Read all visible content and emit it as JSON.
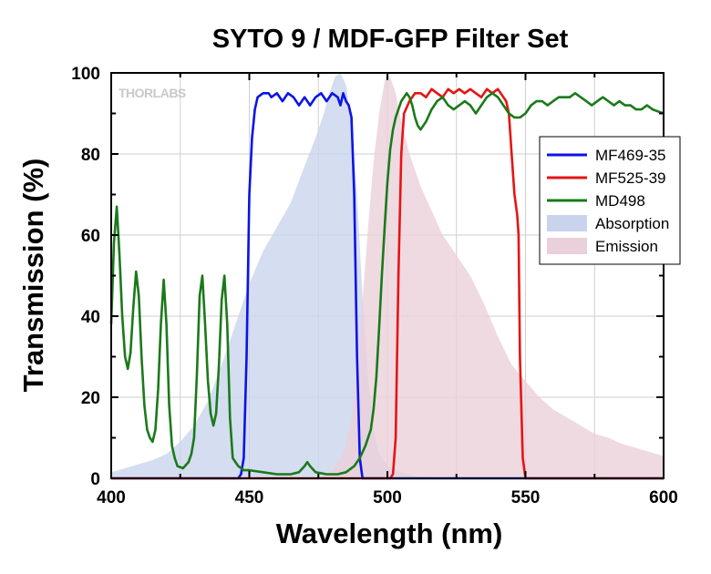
{
  "watermark": "THORLABS",
  "chart_data": {
    "type": "line",
    "title": "SYTO 9 / MDF-GFP Filter Set",
    "xlabel": "Wavelength (nm)",
    "ylabel": "Transmission (%)",
    "xlim": [
      400,
      600
    ],
    "ylim": [
      0,
      100
    ],
    "xticks": [
      400,
      450,
      500,
      550,
      600
    ],
    "yticks": [
      0,
      20,
      40,
      60,
      80,
      100
    ],
    "grid": true,
    "legend_position": "right",
    "series": [
      {
        "name": "MF469-35",
        "kind": "line",
        "color": "#0a14e6",
        "points": [
          [
            400,
            0
          ],
          [
            446,
            0
          ],
          [
            447,
            1
          ],
          [
            448,
            5
          ],
          [
            449,
            30
          ],
          [
            450,
            70
          ],
          [
            451,
            84
          ],
          [
            452,
            91
          ],
          [
            453,
            94
          ],
          [
            455,
            95
          ],
          [
            457,
            95
          ],
          [
            458,
            94
          ],
          [
            460,
            95
          ],
          [
            462,
            93
          ],
          [
            464,
            95
          ],
          [
            466,
            94
          ],
          [
            468,
            92
          ],
          [
            470,
            94
          ],
          [
            472,
            92
          ],
          [
            474,
            94
          ],
          [
            476,
            95
          ],
          [
            478,
            93
          ],
          [
            480,
            95
          ],
          [
            482,
            94
          ],
          [
            483,
            92
          ],
          [
            484,
            95
          ],
          [
            485,
            93
          ],
          [
            486,
            92
          ],
          [
            487,
            89
          ],
          [
            488,
            70
          ],
          [
            489,
            30
          ],
          [
            490,
            5
          ],
          [
            491,
            0
          ],
          [
            600,
            0
          ]
        ]
      },
      {
        "name": "MF525-39",
        "kind": "line",
        "color": "#e61414",
        "points": [
          [
            400,
            0
          ],
          [
            501,
            0
          ],
          [
            502,
            1
          ],
          [
            503,
            10
          ],
          [
            504,
            50
          ],
          [
            505,
            80
          ],
          [
            506,
            90
          ],
          [
            508,
            93
          ],
          [
            510,
            95
          ],
          [
            512,
            95
          ],
          [
            514,
            94
          ],
          [
            516,
            96
          ],
          [
            518,
            95
          ],
          [
            520,
            94
          ],
          [
            522,
            96
          ],
          [
            524,
            95
          ],
          [
            526,
            96
          ],
          [
            528,
            95
          ],
          [
            530,
            96
          ],
          [
            532,
            95
          ],
          [
            534,
            94
          ],
          [
            536,
            96
          ],
          [
            538,
            95
          ],
          [
            540,
            96
          ],
          [
            542,
            94
          ],
          [
            543,
            93
          ],
          [
            544,
            90
          ],
          [
            545,
            80
          ],
          [
            546,
            70
          ],
          [
            547,
            65
          ],
          [
            547.5,
            60
          ],
          [
            548,
            30
          ],
          [
            549,
            5
          ],
          [
            550,
            0
          ],
          [
            600,
            0
          ]
        ]
      },
      {
        "name": "MD498",
        "kind": "line",
        "color": "#1a7a1a",
        "points": [
          [
            400,
            38
          ],
          [
            401,
            58
          ],
          [
            402,
            67
          ],
          [
            403,
            55
          ],
          [
            404,
            40
          ],
          [
            405,
            30
          ],
          [
            406,
            27
          ],
          [
            407,
            31
          ],
          [
            408,
            42
          ],
          [
            409,
            51
          ],
          [
            410,
            45
          ],
          [
            411,
            30
          ],
          [
            412,
            18
          ],
          [
            413,
            12
          ],
          [
            414,
            10
          ],
          [
            415,
            9
          ],
          [
            416,
            12
          ],
          [
            417,
            22
          ],
          [
            418,
            38
          ],
          [
            419,
            49
          ],
          [
            420,
            38
          ],
          [
            421,
            18
          ],
          [
            422,
            8
          ],
          [
            423,
            5
          ],
          [
            424,
            3
          ],
          [
            426,
            2.5
          ],
          [
            428,
            4
          ],
          [
            429,
            6
          ],
          [
            430,
            10
          ],
          [
            431,
            25
          ],
          [
            432,
            45
          ],
          [
            433,
            50
          ],
          [
            434,
            38
          ],
          [
            435,
            24
          ],
          [
            436,
            16
          ],
          [
            437,
            13
          ],
          [
            438,
            16
          ],
          [
            439,
            28
          ],
          [
            440,
            44
          ],
          [
            441,
            50
          ],
          [
            442,
            38
          ],
          [
            443,
            15
          ],
          [
            444,
            5
          ],
          [
            446,
            3
          ],
          [
            448,
            2
          ],
          [
            450,
            2
          ],
          [
            455,
            1.5
          ],
          [
            460,
            1
          ],
          [
            465,
            1
          ],
          [
            468,
            1.5
          ],
          [
            470,
            3
          ],
          [
            471,
            4
          ],
          [
            472,
            3
          ],
          [
            474,
            1.5
          ],
          [
            478,
            1
          ],
          [
            482,
            1
          ],
          [
            485,
            1.5
          ],
          [
            488,
            3
          ],
          [
            490,
            5
          ],
          [
            492,
            8
          ],
          [
            494,
            12
          ],
          [
            495,
            17
          ],
          [
            496,
            25
          ],
          [
            497,
            37
          ],
          [
            498,
            50
          ],
          [
            499,
            62
          ],
          [
            500,
            73
          ],
          [
            501,
            81
          ],
          [
            502,
            86
          ],
          [
            503,
            89
          ],
          [
            504,
            91
          ],
          [
            505,
            93
          ],
          [
            507,
            95
          ],
          [
            508,
            94
          ],
          [
            509,
            92
          ],
          [
            510,
            89
          ],
          [
            511,
            87
          ],
          [
            512,
            86
          ],
          [
            514,
            88
          ],
          [
            516,
            91
          ],
          [
            518,
            93
          ],
          [
            520,
            94
          ],
          [
            522,
            92
          ],
          [
            524,
            91
          ],
          [
            526,
            92
          ],
          [
            528,
            93
          ],
          [
            530,
            92
          ],
          [
            532,
            90
          ],
          [
            534,
            92
          ],
          [
            536,
            94
          ],
          [
            538,
            95
          ],
          [
            540,
            94
          ],
          [
            542,
            92
          ],
          [
            544,
            90
          ],
          [
            546,
            89
          ],
          [
            548,
            89
          ],
          [
            550,
            90
          ],
          [
            552,
            92
          ],
          [
            554,
            93
          ],
          [
            556,
            93
          ],
          [
            558,
            92
          ],
          [
            560,
            93
          ],
          [
            562,
            94
          ],
          [
            564,
            94
          ],
          [
            566,
            94
          ],
          [
            568,
            95
          ],
          [
            570,
            94
          ],
          [
            572,
            93
          ],
          [
            574,
            92
          ],
          [
            576,
            93
          ],
          [
            578,
            94
          ],
          [
            580,
            93
          ],
          [
            582,
            92
          ],
          [
            584,
            93
          ],
          [
            586,
            92
          ],
          [
            588,
            92
          ],
          [
            590,
            91
          ],
          [
            592,
            91
          ],
          [
            594,
            92
          ],
          [
            596,
            91
          ],
          [
            598,
            90.5
          ],
          [
            600,
            90
          ]
        ]
      },
      {
        "name": "Absorption",
        "kind": "area",
        "color": "#c9d3ec",
        "points": [
          [
            400,
            1.5
          ],
          [
            405,
            2.5
          ],
          [
            410,
            3.5
          ],
          [
            415,
            4.5
          ],
          [
            420,
            6
          ],
          [
            425,
            9
          ],
          [
            430,
            13
          ],
          [
            435,
            19
          ],
          [
            440,
            28
          ],
          [
            445,
            38
          ],
          [
            450,
            48
          ],
          [
            455,
            56
          ],
          [
            460,
            62
          ],
          [
            465,
            68
          ],
          [
            470,
            77
          ],
          [
            474,
            84
          ],
          [
            477,
            90
          ],
          [
            479,
            95
          ],
          [
            481,
            99
          ],
          [
            483,
            100
          ],
          [
            485,
            97
          ],
          [
            487,
            88
          ],
          [
            489,
            70
          ],
          [
            491,
            45
          ],
          [
            493,
            25
          ],
          [
            495,
            12
          ],
          [
            497,
            6
          ],
          [
            500,
            3
          ],
          [
            505,
            1.5
          ],
          [
            510,
            0.5
          ],
          [
            520,
            0
          ],
          [
            600,
            0
          ]
        ]
      },
      {
        "name": "Emission",
        "kind": "area",
        "color": "#ead0da",
        "points": [
          [
            475,
            0
          ],
          [
            480,
            2
          ],
          [
            484,
            6
          ],
          [
            487,
            15
          ],
          [
            490,
            35
          ],
          [
            493,
            62
          ],
          [
            495,
            78
          ],
          [
            497,
            90
          ],
          [
            499,
            98
          ],
          [
            500,
            100
          ],
          [
            501,
            99
          ],
          [
            503,
            95
          ],
          [
            505,
            88
          ],
          [
            508,
            80
          ],
          [
            512,
            72
          ],
          [
            516,
            66
          ],
          [
            520,
            60
          ],
          [
            525,
            55
          ],
          [
            530,
            50
          ],
          [
            535,
            43
          ],
          [
            540,
            35
          ],
          [
            545,
            28
          ],
          [
            550,
            24
          ],
          [
            555,
            20
          ],
          [
            560,
            17
          ],
          [
            565,
            15
          ],
          [
            570,
            13
          ],
          [
            575,
            11
          ],
          [
            580,
            10
          ],
          [
            585,
            8.5
          ],
          [
            590,
            7.5
          ],
          [
            595,
            6.5
          ],
          [
            600,
            5.5
          ]
        ]
      }
    ]
  }
}
